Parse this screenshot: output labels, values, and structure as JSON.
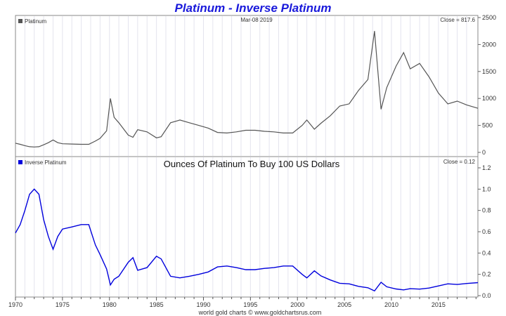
{
  "chart_data": [
    {
      "type": "line",
      "title": "Platinum - Inverse Platinum",
      "legend": "Platinum",
      "date_label": "Mar-08  2019",
      "close_label": "Close = 817.6",
      "color": "#555555",
      "ylim": [
        0,
        2500
      ],
      "yticks": [
        0,
        500,
        1000,
        1500,
        2000,
        2500
      ],
      "ytick_labels": [
        "0",
        "500",
        "1000",
        "1500",
        "2000",
        "2500"
      ],
      "grid": true,
      "x": [
        1970.0,
        1970.5,
        1971.0,
        1971.5,
        1972.0,
        1972.5,
        1973.0,
        1973.5,
        1974.0,
        1974.5,
        1975.0,
        1976.0,
        1977.0,
        1977.8,
        1978.5,
        1979.0,
        1979.7,
        1980.1,
        1980.5,
        1981.0,
        1982.0,
        1982.5,
        1983.0,
        1984.0,
        1985.0,
        1985.5,
        1986.5,
        1987.5,
        1988.5,
        1989.5,
        1990.5,
        1991.5,
        1992.5,
        1993.5,
        1994.5,
        1995.5,
        1996.5,
        1997.5,
        1998.5,
        1999.5,
        2000.5,
        2001.0,
        2001.8,
        2002.5,
        2003.5,
        2004.5,
        2005.5,
        2006.5,
        2007.5,
        2008.2,
        2008.9,
        2009.5,
        2010.5,
        2011.3,
        2012.0,
        2013.0,
        2014.0,
        2015.0,
        2016.0,
        2017.0,
        2018.0,
        2019.2
      ],
      "values": [
        170,
        150,
        125,
        105,
        100,
        105,
        140,
        180,
        230,
        180,
        160,
        155,
        150,
        150,
        210,
        260,
        400,
        1000,
        650,
        550,
        320,
        280,
        420,
        380,
        270,
        290,
        550,
        600,
        550,
        500,
        450,
        370,
        360,
        380,
        410,
        410,
        390,
        380,
        360,
        360,
        500,
        600,
        430,
        540,
        680,
        860,
        900,
        1150,
        1350,
        2250,
        800,
        1200,
        1600,
        1850,
        1550,
        1650,
        1400,
        1100,
        900,
        950,
        880,
        817.6
      ]
    },
    {
      "type": "line",
      "legend": "Inverse Platinum",
      "subtitle": "Ounces Of Platinum To Buy 100 US Dollars",
      "close_label": "Close = 0.12",
      "color": "#0000dd",
      "ylim": [
        0,
        1.2
      ],
      "yticks": [
        0,
        0.2,
        0.4,
        0.6,
        0.8,
        1.0,
        1.2
      ],
      "ytick_labels": [
        "0.0",
        "0.2",
        "0.4",
        "0.6",
        "0.8",
        "1.0",
        "1.2"
      ],
      "xlim": [
        1970,
        2019.2
      ],
      "xtick_labels": [
        "1970",
        "1975",
        "1980",
        "1985",
        "1990",
        "1995",
        "2000",
        "2005",
        "2010",
        "2015"
      ],
      "grid": true,
      "values": [
        0.588,
        0.667,
        0.8,
        0.952,
        1.0,
        0.952,
        0.714,
        0.556,
        0.435,
        0.556,
        0.625,
        0.645,
        0.667,
        0.667,
        0.476,
        0.385,
        0.25,
        0.1,
        0.154,
        0.182,
        0.313,
        0.357,
        0.238,
        0.263,
        0.37,
        0.345,
        0.182,
        0.167,
        0.182,
        0.2,
        0.222,
        0.27,
        0.278,
        0.263,
        0.244,
        0.244,
        0.256,
        0.263,
        0.278,
        0.278,
        0.2,
        0.167,
        0.233,
        0.185,
        0.147,
        0.116,
        0.111,
        0.087,
        0.074,
        0.044,
        0.125,
        0.083,
        0.0625,
        0.054,
        0.065,
        0.061,
        0.071,
        0.091,
        0.111,
        0.105,
        0.114,
        0.122
      ]
    }
  ],
  "footer": "world gold charts © www.goldchartsrus.com"
}
